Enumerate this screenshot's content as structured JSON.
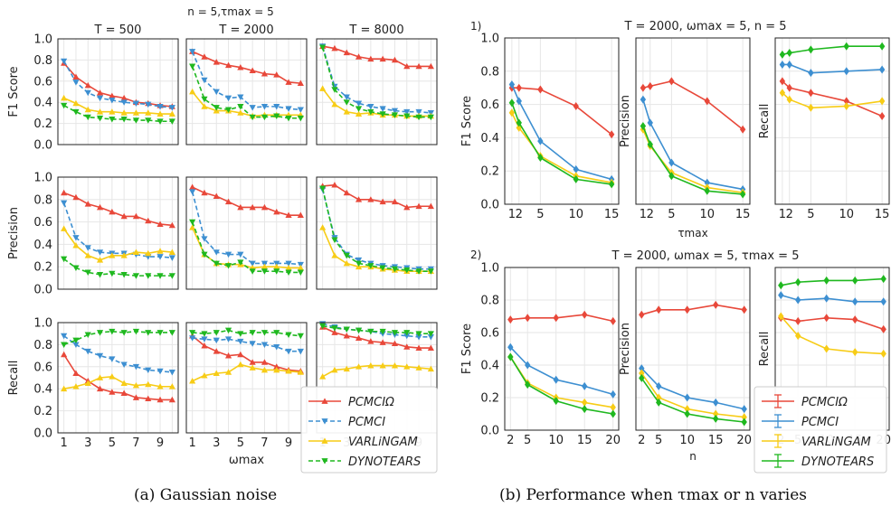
{
  "figure": {
    "suptitle_a": "n = 5,τmax = 5",
    "caption_a": "(a)  Gaussian noise",
    "caption_b": "(b)  Performance when τmax or n varies",
    "colors": {
      "pcmci_omega": "#e8483a",
      "pcmci": "#3d8fd1",
      "varlingam": "#f7cc16",
      "dynotears": "#1fb81f"
    },
    "legend_labels": [
      "PCMCIΩ",
      "PCMCI",
      "VARLiNGAM",
      "DYNOTEARS"
    ]
  },
  "chart_data": [
    {
      "type": "line",
      "panel": "a",
      "title": "",
      "column_titles": [
        "T = 500",
        "T = 2000",
        "T = 8000"
      ],
      "row_labels": [
        "F1 Score",
        "Precision",
        "Recall"
      ],
      "xlabel": "ωmax",
      "xlim": [
        0.5,
        10.5
      ],
      "ylim": [
        0,
        1.0
      ],
      "x": [
        1,
        2,
        3,
        4,
        5,
        6,
        7,
        8,
        9,
        10
      ],
      "xticks": [
        "1",
        "3",
        "5",
        "7",
        "9"
      ],
      "yticks": [
        "0.0",
        "0.2",
        "0.4",
        "0.6",
        "0.8",
        "1.0"
      ],
      "grid": true,
      "legend": "bottom-right",
      "series_names": [
        "PCMCIΩ",
        "PCMCI",
        "VARLiNGAM",
        "DYNOTEARS"
      ],
      "panels": [
        {
          "row": 0,
          "col": 0,
          "series": {
            "PCMCIΩ": [
              0.77,
              0.64,
              0.56,
              0.49,
              0.46,
              0.44,
              0.4,
              0.39,
              0.37,
              0.36
            ],
            "PCMCI": [
              0.79,
              0.59,
              0.49,
              0.44,
              0.42,
              0.4,
              0.39,
              0.38,
              0.36,
              0.35
            ],
            "VARLiNGAM": [
              0.44,
              0.39,
              0.33,
              0.31,
              0.31,
              0.3,
              0.3,
              0.3,
              0.29,
              0.29
            ],
            "DYNOTEARS": [
              0.37,
              0.31,
              0.26,
              0.25,
              0.24,
              0.24,
              0.23,
              0.23,
              0.22,
              0.22
            ]
          }
        },
        {
          "row": 0,
          "col": 1,
          "series": {
            "PCMCIΩ": [
              0.88,
              0.83,
              0.78,
              0.75,
              0.73,
              0.7,
              0.67,
              0.66,
              0.59,
              0.58
            ],
            "PCMCI": [
              0.88,
              0.61,
              0.5,
              0.44,
              0.45,
              0.35,
              0.36,
              0.36,
              0.34,
              0.33
            ],
            "VARLiNGAM": [
              0.5,
              0.36,
              0.32,
              0.32,
              0.3,
              0.27,
              0.28,
              0.28,
              0.28,
              0.28
            ],
            "DYNOTEARS": [
              0.74,
              0.43,
              0.35,
              0.33,
              0.36,
              0.26,
              0.26,
              0.27,
              0.25,
              0.25
            ]
          }
        },
        {
          "row": 0,
          "col": 2,
          "series": {
            "PCMCIΩ": [
              0.93,
              0.91,
              0.87,
              0.83,
              0.81,
              0.81,
              0.8,
              0.74,
              0.74,
              0.74
            ],
            "PCMCI": [
              0.93,
              0.55,
              0.45,
              0.39,
              0.36,
              0.34,
              0.32,
              0.31,
              0.31,
              0.3
            ],
            "VARLiNGAM": [
              0.53,
              0.38,
              0.31,
              0.29,
              0.3,
              0.28,
              0.28,
              0.27,
              0.27,
              0.27
            ],
            "DYNOTEARS": [
              0.92,
              0.52,
              0.4,
              0.34,
              0.31,
              0.29,
              0.28,
              0.27,
              0.26,
              0.26
            ]
          }
        },
        {
          "row": 1,
          "col": 0,
          "series": {
            "PCMCIΩ": [
              0.86,
              0.82,
              0.76,
              0.73,
              0.69,
              0.65,
              0.65,
              0.61,
              0.58,
              0.57
            ],
            "PCMCI": [
              0.77,
              0.46,
              0.37,
              0.33,
              0.32,
              0.32,
              0.31,
              0.29,
              0.29,
              0.28
            ],
            "VARLiNGAM": [
              0.54,
              0.39,
              0.3,
              0.26,
              0.3,
              0.3,
              0.33,
              0.32,
              0.34,
              0.33
            ],
            "DYNOTEARS": [
              0.27,
              0.19,
              0.15,
              0.13,
              0.14,
              0.13,
              0.12,
              0.12,
              0.12,
              0.12
            ]
          }
        },
        {
          "row": 1,
          "col": 1,
          "series": {
            "PCMCIΩ": [
              0.91,
              0.86,
              0.83,
              0.78,
              0.73,
              0.73,
              0.73,
              0.69,
              0.66,
              0.66
            ],
            "PCMCI": [
              0.87,
              0.45,
              0.33,
              0.31,
              0.31,
              0.23,
              0.23,
              0.23,
              0.23,
              0.22
            ],
            "VARLiNGAM": [
              0.55,
              0.31,
              0.23,
              0.22,
              0.22,
              0.19,
              0.2,
              0.2,
              0.19,
              0.19
            ],
            "DYNOTEARS": [
              0.6,
              0.31,
              0.23,
              0.21,
              0.24,
              0.16,
              0.16,
              0.16,
              0.15,
              0.15
            ]
          }
        },
        {
          "row": 1,
          "col": 2,
          "series": {
            "PCMCIΩ": [
              0.92,
              0.93,
              0.86,
              0.8,
              0.8,
              0.78,
              0.78,
              0.73,
              0.74,
              0.74
            ],
            "PCMCI": [
              0.89,
              0.46,
              0.31,
              0.26,
              0.23,
              0.21,
              0.2,
              0.19,
              0.18,
              0.18
            ],
            "VARLiNGAM": [
              0.55,
              0.3,
              0.23,
              0.2,
              0.2,
              0.18,
              0.17,
              0.16,
              0.16,
              0.16
            ],
            "DYNOTEARS": [
              0.9,
              0.44,
              0.3,
              0.23,
              0.21,
              0.19,
              0.18,
              0.17,
              0.16,
              0.16
            ]
          }
        },
        {
          "row": 2,
          "col": 0,
          "series": {
            "PCMCIΩ": [
              0.71,
              0.54,
              0.47,
              0.4,
              0.37,
              0.36,
              0.32,
              0.31,
              0.3,
              0.3
            ],
            "PCMCI": [
              0.88,
              0.8,
              0.74,
              0.7,
              0.67,
              0.62,
              0.6,
              0.57,
              0.56,
              0.55
            ],
            "VARLiNGAM": [
              0.4,
              0.42,
              0.45,
              0.5,
              0.51,
              0.45,
              0.43,
              0.44,
              0.42,
              0.42
            ],
            "DYNOTEARS": [
              0.8,
              0.84,
              0.89,
              0.91,
              0.92,
              0.91,
              0.92,
              0.91,
              0.91,
              0.91
            ]
          }
        },
        {
          "row": 2,
          "col": 1,
          "series": {
            "PCMCIΩ": [
              0.88,
              0.79,
              0.74,
              0.7,
              0.71,
              0.64,
              0.64,
              0.6,
              0.57,
              0.56
            ],
            "PCMCI": [
              0.86,
              0.85,
              0.84,
              0.85,
              0.83,
              0.81,
              0.8,
              0.78,
              0.74,
              0.74
            ],
            "VARLiNGAM": [
              0.47,
              0.52,
              0.54,
              0.55,
              0.62,
              0.59,
              0.57,
              0.57,
              0.56,
              0.55
            ],
            "DYNOTEARS": [
              0.91,
              0.9,
              0.91,
              0.93,
              0.9,
              0.91,
              0.91,
              0.91,
              0.89,
              0.88
            ]
          }
        },
        {
          "row": 2,
          "col": 2,
          "series": {
            "PCMCIΩ": [
              0.96,
              0.91,
              0.88,
              0.86,
              0.83,
              0.82,
              0.81,
              0.78,
              0.77,
              0.77
            ],
            "PCMCI": [
              0.99,
              0.96,
              0.94,
              0.93,
              0.92,
              0.9,
              0.89,
              0.88,
              0.87,
              0.87
            ],
            "VARLiNGAM": [
              0.51,
              0.57,
              0.58,
              0.6,
              0.61,
              0.61,
              0.61,
              0.6,
              0.59,
              0.58
            ],
            "DYNOTEARS": [
              0.97,
              0.95,
              0.94,
              0.93,
              0.92,
              0.92,
              0.91,
              0.91,
              0.9,
              0.9
            ]
          }
        }
      ]
    },
    {
      "type": "line",
      "panel": "b1",
      "panel_label": "1)",
      "title": "T = 2000, ωmax = 5, n = 5",
      "xlabel": "τmax",
      "row_labels": [
        "F1 Score",
        "Precision",
        "Recall"
      ],
      "x": [
        1,
        2,
        5,
        10,
        15
      ],
      "xlim": [
        0,
        16
      ],
      "ylim": [
        0,
        1.0
      ],
      "xtick_values": [
        1,
        2,
        5,
        10,
        15
      ],
      "xtick_labels": [
        "1",
        "2",
        "5",
        "10",
        "15"
      ],
      "yticks": [
        "0.0",
        "0.2",
        "0.4",
        "0.6",
        "0.8",
        "1.0"
      ],
      "panels": [
        {
          "metric": "F1 Score",
          "series": {
            "PCMCIΩ": [
              0.7,
              0.7,
              0.69,
              0.59,
              0.42
            ],
            "PCMCI": [
              0.72,
              0.62,
              0.38,
              0.21,
              0.15
            ],
            "VARLiNGAM": [
              0.55,
              0.46,
              0.29,
              0.17,
              0.13
            ],
            "DYNOTEARS": [
              0.61,
              0.49,
              0.28,
              0.15,
              0.12
            ]
          }
        },
        {
          "metric": "Precision",
          "series": {
            "PCMCIΩ": [
              0.7,
              0.71,
              0.74,
              0.62,
              0.45
            ],
            "PCMCI": [
              0.63,
              0.49,
              0.25,
              0.13,
              0.09
            ],
            "VARLiNGAM": [
              0.45,
              0.35,
              0.19,
              0.1,
              0.07
            ],
            "DYNOTEARS": [
              0.47,
              0.36,
              0.17,
              0.08,
              0.06
            ]
          }
        },
        {
          "metric": "Recall",
          "series": {
            "PCMCIΩ": [
              0.74,
              0.7,
              0.67,
              0.62,
              0.53
            ],
            "PCMCI": [
              0.84,
              0.84,
              0.79,
              0.8,
              0.81
            ],
            "VARLiNGAM": [
              0.67,
              0.63,
              0.58,
              0.59,
              0.62
            ],
            "DYNOTEARS": [
              0.9,
              0.91,
              0.93,
              0.95,
              0.95
            ]
          }
        }
      ]
    },
    {
      "type": "line",
      "panel": "b2",
      "panel_label": "2)",
      "title": "T = 2000, ωmax = 5, τmax = 5",
      "xlabel": "n",
      "row_labels": [
        "F1 Score",
        "Precision",
        "Recall"
      ],
      "x": [
        2,
        5,
        10,
        15,
        20
      ],
      "xlim": [
        1,
        21
      ],
      "ylim": [
        0,
        1.0
      ],
      "xtick_values": [
        2,
        5,
        10,
        15,
        20
      ],
      "xtick_labels": [
        "2",
        "5",
        "10",
        "15",
        "20"
      ],
      "yticks": [
        "0.0",
        "0.2",
        "0.4",
        "0.6",
        "0.8",
        "1.0"
      ],
      "panels": [
        {
          "metric": "F1 Score",
          "series": {
            "PCMCIΩ": [
              0.68,
              0.69,
              0.69,
              0.71,
              0.67
            ],
            "PCMCI": [
              0.51,
              0.4,
              0.31,
              0.27,
              0.22
            ],
            "VARLiNGAM": [
              0.45,
              0.29,
              0.2,
              0.17,
              0.14
            ],
            "DYNOTEARS": [
              0.45,
              0.28,
              0.18,
              0.13,
              0.1
            ]
          }
        },
        {
          "metric": "Precision",
          "series": {
            "PCMCIΩ": [
              0.71,
              0.74,
              0.74,
              0.77,
              0.74
            ],
            "PCMCI": [
              0.38,
              0.27,
              0.2,
              0.17,
              0.13
            ],
            "VARLiNGAM": [
              0.35,
              0.2,
              0.13,
              0.1,
              0.08
            ],
            "DYNOTEARS": [
              0.32,
              0.17,
              0.1,
              0.07,
              0.05
            ]
          }
        },
        {
          "metric": "Recall",
          "series": {
            "PCMCIΩ": [
              0.69,
              0.67,
              0.69,
              0.68,
              0.62
            ],
            "PCMCI": [
              0.83,
              0.8,
              0.81,
              0.79,
              0.79
            ],
            "VARLiNGAM": [
              0.7,
              0.58,
              0.5,
              0.48,
              0.47
            ],
            "DYNOTEARS": [
              0.89,
              0.91,
              0.92,
              0.92,
              0.93
            ]
          }
        }
      ]
    }
  ]
}
